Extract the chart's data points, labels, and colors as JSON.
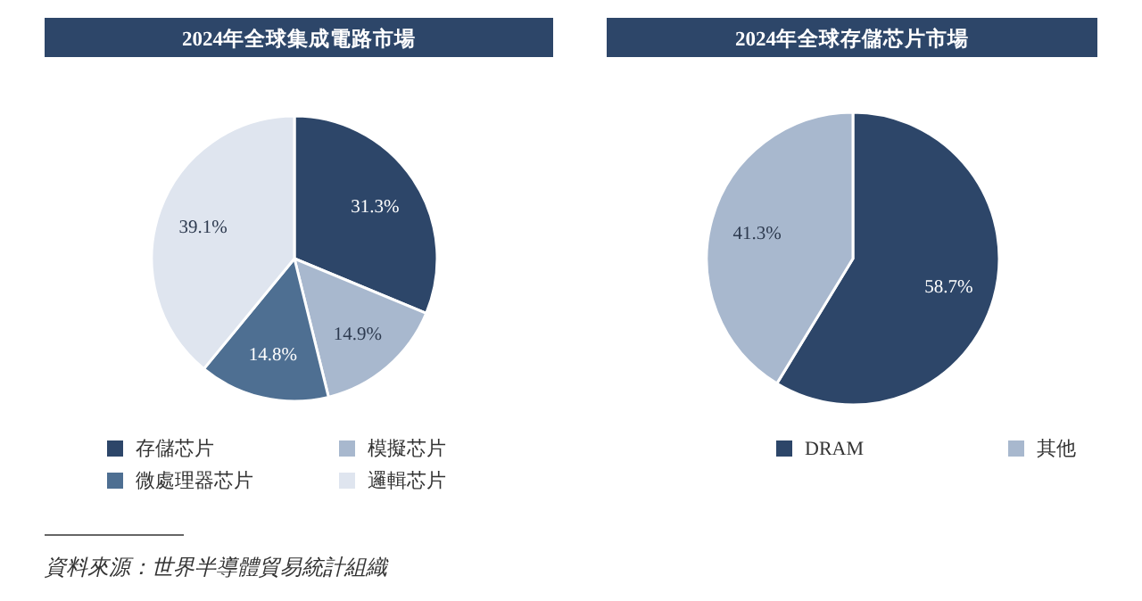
{
  "chart_data": [
    {
      "type": "pie",
      "title": "2024年全球集成電路市場",
      "categories": [
        "存儲芯片",
        "模擬芯片",
        "微處理器芯片",
        "邏輯芯片"
      ],
      "values": [
        31.3,
        14.9,
        14.8,
        39.1
      ],
      "value_labels": [
        "31.3%",
        "14.9%",
        "14.8%",
        "39.1%"
      ],
      "colors": [
        "#2d4669",
        "#a8b8ce",
        "#4e6f92",
        "#dfe5ef"
      ],
      "legend": "bottom",
      "annotations": [
        "資料來源：世界半導體貿易統計組織"
      ]
    },
    {
      "type": "pie",
      "title": "2024年全球存儲芯片市場",
      "categories": [
        "DRAM",
        "其他"
      ],
      "values": [
        58.7,
        41.3
      ],
      "value_labels": [
        "58.7%",
        "41.3%"
      ],
      "colors": [
        "#2d4669",
        "#a8b8ce"
      ],
      "legend": "bottom"
    }
  ]
}
